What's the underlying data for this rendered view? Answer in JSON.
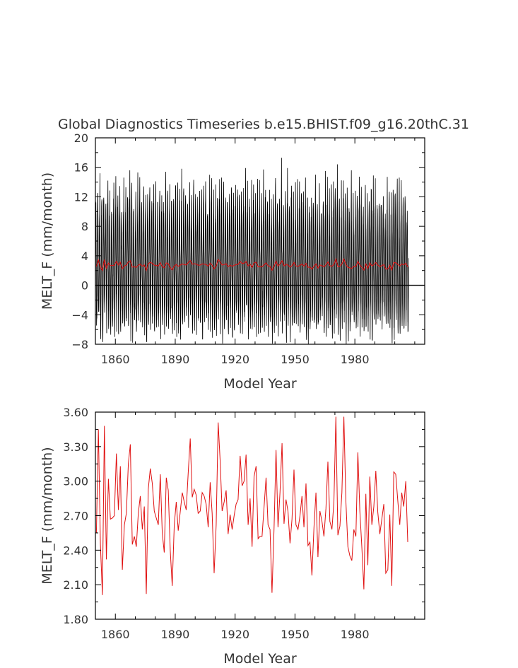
{
  "title": "Global Diagnostics Timeseries b.e15.BHIST.f09_g16.20thC.31",
  "chart_data": [
    {
      "type": "line",
      "xlabel": "Model Year",
      "ylabel": "MELT_F (mm/month)",
      "xlim": [
        1850,
        2015
      ],
      "ylim": [
        -8,
        20
      ],
      "xticks": [
        1860,
        1890,
        1920,
        1950,
        1980
      ],
      "yticks": [
        -8,
        -4,
        0,
        4,
        8,
        12,
        16,
        20
      ],
      "ytick_labels": [
        "−8",
        "−4",
        "0",
        "4",
        "8",
        "12",
        "16",
        "20"
      ],
      "zero_line": true,
      "series": [
        {
          "color": "#000000",
          "description_values": "monthly values, 12 per year",
          "summary": {
            "typical_max": 10,
            "peak_max": 17.3,
            "typical_min": -4,
            "peak_min": -8
          },
          "peaks_max": [
            {
              "x": 1852,
              "y": 15.2
            },
            {
              "x": 1856,
              "y": 14.2
            },
            {
              "x": 1860,
              "y": 14.8
            },
            {
              "x": 1864,
              "y": 14.6
            },
            {
              "x": 1867,
              "y": 15.6
            },
            {
              "x": 1871,
              "y": 15.3
            },
            {
              "x": 1874,
              "y": 13.4
            },
            {
              "x": 1880,
              "y": 14.1
            },
            {
              "x": 1885,
              "y": 15.4
            },
            {
              "x": 1893,
              "y": 15.8
            },
            {
              "x": 1899,
              "y": 14.3
            },
            {
              "x": 1904,
              "y": 13.5
            },
            {
              "x": 1912,
              "y": 14.4
            },
            {
              "x": 1920,
              "y": 13.6
            },
            {
              "x": 1925,
              "y": 15.9
            },
            {
              "x": 1934,
              "y": 15.7
            },
            {
              "x": 1943,
              "y": 17.3
            },
            {
              "x": 1946,
              "y": 15.9
            },
            {
              "x": 1951,
              "y": 14.4
            },
            {
              "x": 1960,
              "y": 15.0
            },
            {
              "x": 1965,
              "y": 15.5
            },
            {
              "x": 1971,
              "y": 16.4
            },
            {
              "x": 1978,
              "y": 15.6
            },
            {
              "x": 1989,
              "y": 14.9
            },
            {
              "x": 1996,
              "y": 14.7
            },
            {
              "x": 2002,
              "y": 14.6
            },
            {
              "x": 2009,
              "y": 15.1
            },
            {
              "x": 2013,
              "y": 14.9
            }
          ],
          "troughs_min": [
            {
              "x": 1853,
              "y": -7.7
            },
            {
              "x": 1859,
              "y": -7.0
            },
            {
              "x": 1867,
              "y": -7.6
            },
            {
              "x": 1875,
              "y": -7.7
            },
            {
              "x": 1882,
              "y": -7.3
            },
            {
              "x": 1890,
              "y": -7.0
            },
            {
              "x": 1903,
              "y": -7.3
            },
            {
              "x": 1913,
              "y": -7.9
            },
            {
              "x": 1918,
              "y": -7.1
            },
            {
              "x": 1930,
              "y": -7.0
            },
            {
              "x": 1945,
              "y": -7.8
            },
            {
              "x": 1955,
              "y": -7.4
            },
            {
              "x": 1968,
              "y": -7.2
            },
            {
              "x": 1976,
              "y": -7.6
            },
            {
              "x": 1988,
              "y": -7.5
            },
            {
              "x": 1999,
              "y": -7.4
            },
            {
              "x": 2008,
              "y": -7.0
            }
          ]
        },
        {
          "color": "#e01010",
          "description_values": "annual mean",
          "x_start": 1850,
          "x_end": 2014,
          "values": [
            2.55,
            3.45,
            2.45,
            2.01,
            3.48,
            2.32,
            3.02,
            2.67,
            2.68,
            2.7,
            3.24,
            2.75,
            3.13,
            2.23,
            2.62,
            2.72,
            3.15,
            3.32,
            2.45,
            2.52,
            2.43,
            2.72,
            2.87,
            2.58,
            2.78,
            2.02,
            2.93,
            3.11,
            2.98,
            2.74,
            2.68,
            2.62,
            3.06,
            2.55,
            2.38,
            3.03,
            2.92,
            2.4,
            2.09,
            2.62,
            2.82,
            2.57,
            2.73,
            2.9,
            2.82,
            2.75,
            3.07,
            3.37,
            2.86,
            2.93,
            2.88,
            2.72,
            2.74,
            2.9,
            2.87,
            2.8,
            2.6,
            2.99,
            2.72,
            2.2,
            2.62,
            3.51,
            3.18,
            2.74,
            2.82,
            2.92,
            2.54,
            2.71,
            2.58,
            2.7,
            2.8,
            2.84,
            3.22,
            2.96,
            3.0,
            3.23,
            2.62,
            2.85,
            2.43,
            3.04,
            3.13,
            2.5,
            2.52,
            2.52,
            2.77,
            3.03,
            2.62,
            2.58,
            2.03,
            2.59,
            3.27,
            2.6,
            2.9,
            3.33,
            2.63,
            2.84,
            2.74,
            2.46,
            2.67,
            3.1,
            2.62,
            2.58,
            2.7,
            2.87,
            2.6,
            2.98,
            2.44,
            2.47,
            2.18,
            2.6,
            2.9,
            2.34,
            2.74,
            2.65,
            2.52,
            2.76,
            3.17,
            2.65,
            2.58,
            2.82,
            3.56,
            2.53,
            2.61,
            2.9,
            3.56,
            2.83,
            2.43,
            2.35,
            2.31,
            2.58,
            2.52,
            3.25,
            2.74,
            2.43,
            2.06,
            2.89,
            2.27,
            3.04,
            2.62,
            2.78,
            3.09,
            2.73,
            2.54,
            2.67,
            2.8,
            2.2,
            2.23,
            2.71,
            2.09,
            3.08,
            3.06,
            2.83,
            2.62,
            2.9,
            2.78,
            3.0,
            2.47
          ]
        }
      ]
    },
    {
      "type": "line",
      "xlabel": "Model Year",
      "ylabel": "MELT_F (mm/month)",
      "xlim": [
        1850,
        2015
      ],
      "ylim": [
        1.8,
        3.6
      ],
      "xticks": [
        1860,
        1890,
        1920,
        1950,
        1980
      ],
      "yticks": [
        1.8,
        2.1,
        2.4,
        2.7,
        3.0,
        3.3,
        3.6
      ],
      "ytick_labels": [
        "1.80",
        "2.10",
        "2.40",
        "2.70",
        "3.00",
        "3.30",
        "3.60"
      ],
      "series": [
        {
          "color": "#e01010",
          "ref": "annual_mean"
        }
      ]
    }
  ]
}
